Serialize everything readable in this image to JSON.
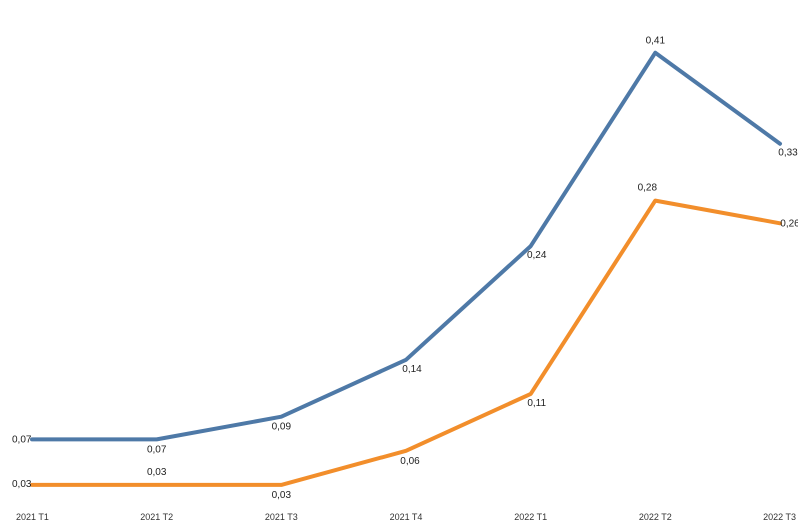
{
  "chart_data": {
    "type": "line",
    "categories": [
      "2021 T1",
      "2021 T2",
      "2021 T3",
      "2021 T4",
      "2022 T1",
      "2022 T2",
      "2022 T3"
    ],
    "series": [
      {
        "values": [
          0.07,
          0.07,
          0.09,
          0.14,
          0.24,
          0.41,
          0.33
        ],
        "labels": [
          "0,07",
          "0,07",
          "0,09",
          "0,14",
          "0,24",
          "0,41",
          "0,33"
        ],
        "color": "#4e79a7"
      },
      {
        "values": [
          0.03,
          0.03,
          0.03,
          0.06,
          0.11,
          0.28,
          0.26
        ],
        "labels": [
          "0,03",
          "0,03",
          "0,03",
          "0,06",
          "0,11",
          "0,28",
          "0,26"
        ],
        "color": "#f28e2b"
      }
    ],
    "title": "",
    "xlabel": "",
    "ylabel": "",
    "ylim": [
      0,
      0.43
    ],
    "grid": false,
    "legend": "none"
  }
}
